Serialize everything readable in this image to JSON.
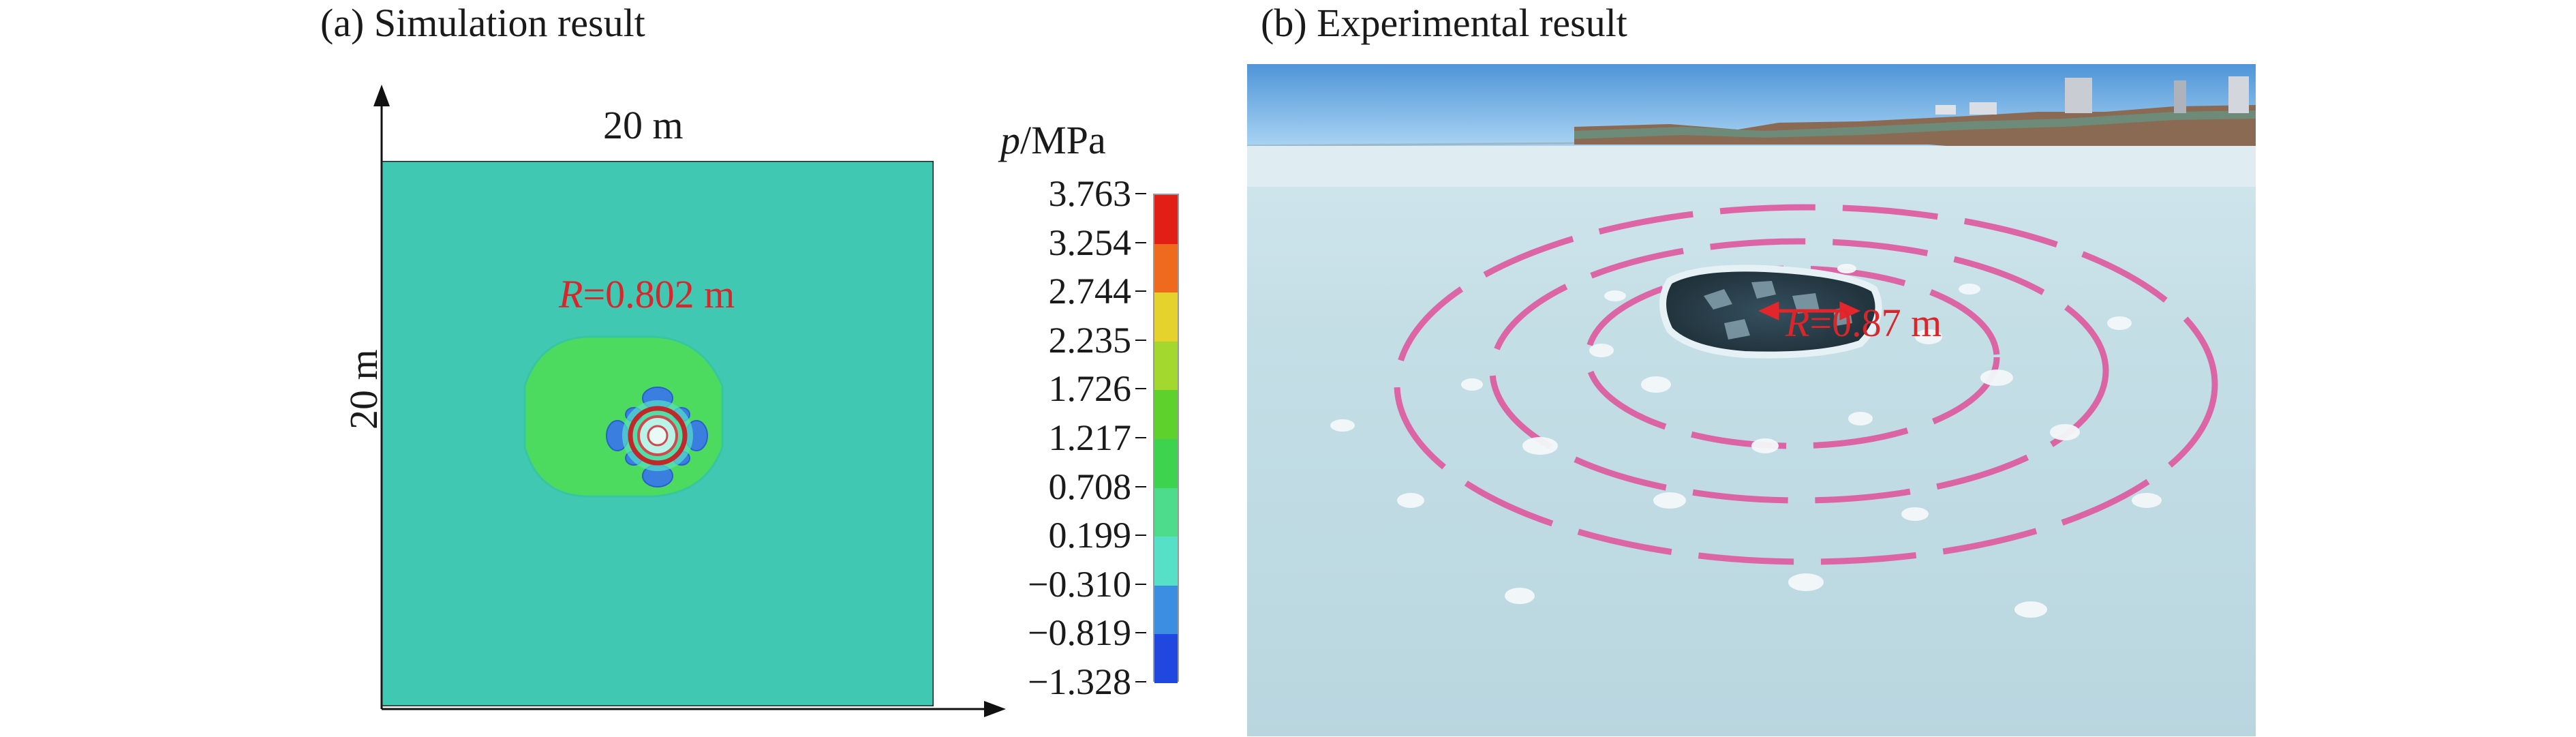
{
  "panel_a": {
    "caption": "(a) Simulation result",
    "width_label": "20 m",
    "height_label": "20 m",
    "radius_label_italic": "R",
    "radius_label_value": "=0.802 m",
    "colors": {
      "background_field": "#40c8b2",
      "zone_field": "#4ddb5f",
      "ring": "#c0282a"
    },
    "colorbar": {
      "title_italic": "p",
      "title_rest": "/MPa",
      "ticks": [
        "3.763",
        "3.254",
        "2.744",
        "2.235",
        "1.726",
        "1.217",
        "0.708",
        "0.199",
        "−0.310",
        "−0.819",
        "−1.328"
      ],
      "colors": [
        "#e21f17",
        "#f06a1e",
        "#e6d22c",
        "#a3d92e",
        "#5fd12c",
        "#3ed34f",
        "#4ddb8c",
        "#56e0c8",
        "#3c8ee2",
        "#2048e0"
      ]
    }
  },
  "panel_b": {
    "caption": "(b) Experimental result",
    "radius_label_italic": "R",
    "radius_label_value": "=0.87 m"
  }
}
